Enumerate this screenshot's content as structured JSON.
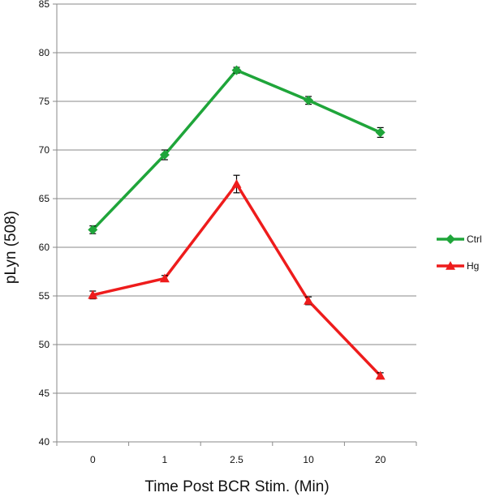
{
  "chart_data": {
    "type": "line",
    "xlabel": "Time Post BCR Stim. (Min)",
    "ylabel": "pLyn (508)",
    "categories": [
      "0",
      "1",
      "2.5",
      "10",
      "20"
    ],
    "ylim": [
      40,
      85
    ],
    "yticks": [
      40,
      45,
      50,
      55,
      60,
      65,
      70,
      75,
      80,
      85
    ],
    "grid": "horizontal",
    "legend_position": "right",
    "series": [
      {
        "name": "Ctrl",
        "color": "#1fa53a",
        "marker": "diamond",
        "values": [
          61.8,
          69.5,
          78.2,
          75.1,
          71.8
        ],
        "errors": [
          0.4,
          0.5,
          0.3,
          0.4,
          0.5
        ]
      },
      {
        "name": "Hg",
        "color": "#ee1c1c",
        "marker": "triangle",
        "values": [
          55.1,
          56.8,
          66.5,
          54.5,
          46.8
        ],
        "errors": [
          0.4,
          0.3,
          0.9,
          0.4,
          0.3
        ]
      }
    ]
  }
}
